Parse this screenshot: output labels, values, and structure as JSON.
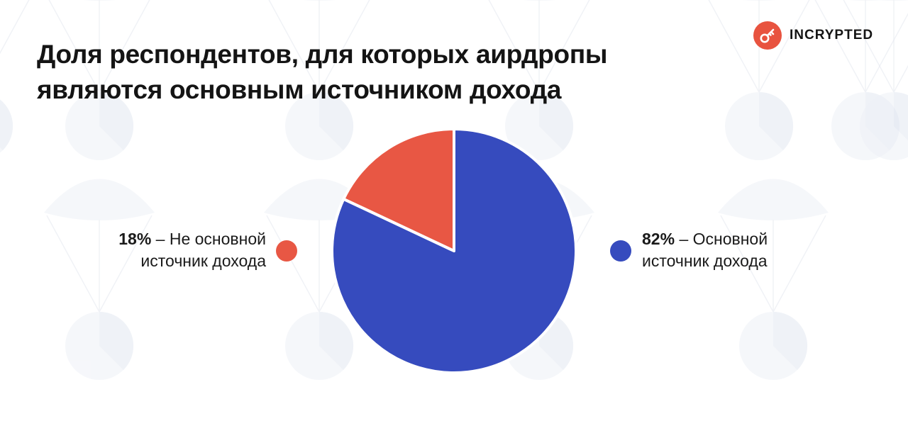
{
  "title": "Доля респондентов, для которых аирдропы являются основным источником дохода",
  "logo": {
    "text": "INCRYPTED",
    "icon": "key-icon",
    "color": "#e8533f"
  },
  "chart_data": {
    "type": "pie",
    "title": "Доля респондентов, для которых аирдропы являются основным источником дохода",
    "slices": [
      {
        "label_pct": "82%",
        "label_text": "– Основной источник дохода",
        "value": 82,
        "color": "#364bbe"
      },
      {
        "label_pct": "18%",
        "label_text": "– Не основной источник дохода",
        "value": 18,
        "color": "#e85744"
      }
    ],
    "legend_placement": "sides"
  }
}
